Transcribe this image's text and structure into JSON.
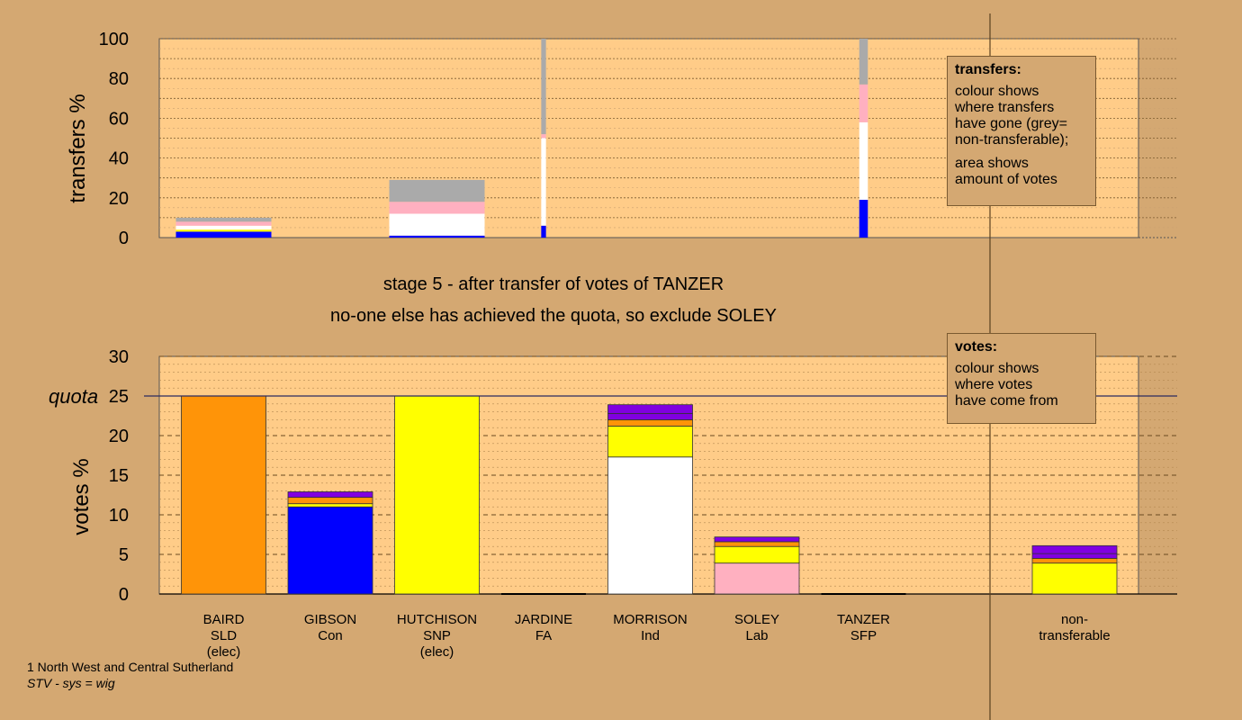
{
  "title_lines": [
    "stage 5 - after transfer of votes of TANZER",
    "no-one else has achieved the quota, so exclude SOLEY"
  ],
  "footer": {
    "line1": "1 North West and Central Sutherland",
    "line2": "STV - sys = wig"
  },
  "legend_transfers": {
    "title": "transfers:",
    "lines_a": [
      "colour shows",
      "where transfers",
      "have gone (grey=",
      "non-transferable);"
    ],
    "lines_b": [
      "area shows",
      "amount of votes"
    ]
  },
  "legend_votes": {
    "title": "votes:",
    "lines": [
      "colour shows",
      "where votes",
      "have come from"
    ]
  },
  "colors": {
    "SLD": "#ff9408",
    "Con": "#0000ff",
    "SNP": "#ffff00",
    "Ind": "#ffffff",
    "Lab": "#ffb0c0",
    "other": "#8000e0",
    "nontransferable": "#aaaaaa",
    "plot_bg": "#ffcc88",
    "page_bg": "#d4a872"
  },
  "chart_data": [
    {
      "type": "bar",
      "name": "transfers",
      "ylabel": "transfers %",
      "ylim": [
        0,
        100
      ],
      "yticks": [
        0,
        20,
        40,
        60,
        80,
        100
      ],
      "bars": [
        {
          "candidate": "BAIRD",
          "width_share": 1.0,
          "segments": [
            {
              "color": "Con",
              "value": 3
            },
            {
              "color": "SNP",
              "value": 1
            },
            {
              "color": "Ind",
              "value": 2
            },
            {
              "color": "Lab",
              "value": 2
            },
            {
              "color": "nontransferable",
              "value": 2
            }
          ]
        },
        {
          "candidate": "HUTCHISON",
          "width_share": 1.0,
          "segments": [
            {
              "color": "Con",
              "value": 1
            },
            {
              "color": "Ind",
              "value": 11
            },
            {
              "color": "Lab",
              "value": 6
            },
            {
              "color": "nontransferable",
              "value": 11
            }
          ]
        },
        {
          "candidate": "JARDINE",
          "width_share": 0.05,
          "segments": [
            {
              "color": "Con",
              "value": 6
            },
            {
              "color": "Ind",
              "value": 44
            },
            {
              "color": "Lab",
              "value": 2
            },
            {
              "color": "nontransferable",
              "value": 48
            }
          ]
        },
        {
          "candidate": "TANZER",
          "width_share": 0.09,
          "segments": [
            {
              "color": "Con",
              "value": 19
            },
            {
              "color": "Ind",
              "value": 39
            },
            {
              "color": "Lab",
              "value": 19
            },
            {
              "color": "nontransferable",
              "value": 23
            }
          ]
        }
      ]
    },
    {
      "type": "bar",
      "name": "votes",
      "ylabel": "votes %",
      "ylim": [
        0,
        30
      ],
      "yticks": [
        0,
        5,
        10,
        15,
        20,
        25,
        30
      ],
      "quota": 25,
      "quota_label": "quota",
      "categories": [
        {
          "name": "BAIRD",
          "party": "SLD",
          "note": "(elec)",
          "segments": [
            {
              "color": "SLD",
              "value": 25
            }
          ]
        },
        {
          "name": "GIBSON",
          "party": "Con",
          "note": "",
          "segments": [
            {
              "color": "Con",
              "value": 11
            },
            {
              "color": "SNP",
              "value": 0.4
            },
            {
              "color": "SLD",
              "value": 0.8
            },
            {
              "color": "other",
              "value": 0.7
            }
          ]
        },
        {
          "name": "HUTCHISON",
          "party": "SNP",
          "note": "(elec)",
          "segments": [
            {
              "color": "SNP",
              "value": 25
            }
          ]
        },
        {
          "name": "JARDINE",
          "party": "FA",
          "note": "",
          "segments": []
        },
        {
          "name": "MORRISON",
          "party": "Ind",
          "note": "",
          "segments": [
            {
              "color": "Ind",
              "value": 17.3
            },
            {
              "color": "SNP",
              "value": 3.9
            },
            {
              "color": "SLD",
              "value": 0.8
            },
            {
              "color": "other",
              "value": 0.8
            },
            {
              "color": "other",
              "value": 1.1
            }
          ]
        },
        {
          "name": "SOLEY",
          "party": "Lab",
          "note": "",
          "segments": [
            {
              "color": "Lab",
              "value": 3.9
            },
            {
              "color": "SNP",
              "value": 2.1
            },
            {
              "color": "SLD",
              "value": 0.6
            },
            {
              "color": "other",
              "value": 0.6
            }
          ]
        },
        {
          "name": "TANZER",
          "party": "SFP",
          "note": "",
          "segments": []
        },
        {
          "name": "non-",
          "party": "transferable",
          "note": "",
          "segments": [
            {
              "color": "SNP",
              "value": 3.9
            },
            {
              "color": "SLD",
              "value": 0.6
            },
            {
              "color": "other",
              "value": 0.6
            },
            {
              "color": "other",
              "value": 1.0
            }
          ]
        }
      ]
    }
  ]
}
